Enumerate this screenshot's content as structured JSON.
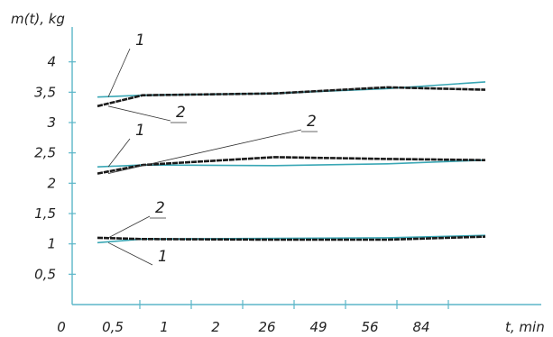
{
  "colors": {
    "axis": "#5bb6c8",
    "series1": "#3aa7b5",
    "series2": "#1a1a1a",
    "text": "#222222"
  },
  "chart_data": {
    "type": "line",
    "ylabel": "m(t), kg",
    "xlabel": "t, min",
    "origin_label": "0",
    "categories": [
      "0,5",
      "1",
      "2",
      "26",
      "49",
      "56",
      "84"
    ],
    "y_ticks": [
      {
        "value": 0.5,
        "label": "0,5"
      },
      {
        "value": 1,
        "label": "1"
      },
      {
        "value": 1.5,
        "label": "1,5"
      },
      {
        "value": 2,
        "label": "2"
      },
      {
        "value": 2.5,
        "label": "2,5"
      },
      {
        "value": 3,
        "label": "3"
      },
      {
        "value": 3.5,
        "label": "3,5"
      },
      {
        "value": 4,
        "label": "4"
      }
    ],
    "ylim": [
      0,
      4.5
    ],
    "grid": false,
    "series": [
      {
        "name": "1",
        "group": "upper",
        "x": [
          0.3,
          1.5,
          5,
          8,
          10.6
        ],
        "values": [
          3.42,
          3.45,
          3.48,
          3.56,
          3.67
        ]
      },
      {
        "name": "2",
        "group": "upper",
        "x": [
          0.3,
          1.5,
          5,
          8,
          10.6
        ],
        "values": [
          3.27,
          3.45,
          3.48,
          3.58,
          3.54
        ]
      },
      {
        "name": "1",
        "group": "middle",
        "x": [
          0.3,
          1.5,
          5,
          8,
          10.6
        ],
        "values": [
          2.27,
          2.3,
          2.29,
          2.32,
          2.38
        ]
      },
      {
        "name": "2",
        "group": "middle",
        "x": [
          0.3,
          1.5,
          5,
          8,
          10.6
        ],
        "values": [
          2.16,
          2.3,
          2.43,
          2.4,
          2.38
        ]
      },
      {
        "name": "1",
        "group": "lower",
        "x": [
          0.3,
          1.5,
          5,
          8,
          10.6
        ],
        "values": [
          1.02,
          1.08,
          1.09,
          1.1,
          1.14
        ]
      },
      {
        "name": "2",
        "group": "lower",
        "x": [
          0.3,
          1.5,
          5,
          8,
          10.6
        ],
        "values": [
          1.1,
          1.08,
          1.07,
          1.07,
          1.12
        ]
      }
    ],
    "annotations": [
      {
        "text": "1",
        "series_index": 0
      },
      {
        "text": "2",
        "series_index": 1
      },
      {
        "text": "1",
        "series_index": 2
      },
      {
        "text": "2",
        "series_index": 3
      },
      {
        "text": "2",
        "series_index": 5
      },
      {
        "text": "1",
        "series_index": 4
      }
    ]
  }
}
